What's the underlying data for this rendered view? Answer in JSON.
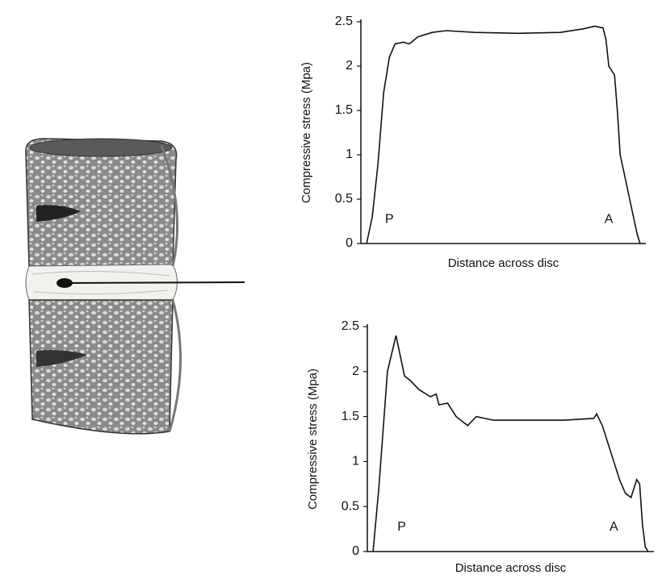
{
  "chart_data": [
    {
      "type": "line",
      "xlabel": "Distance across disc",
      "ylabel": "Compressive stress (Mpa)",
      "annotations": [
        "P",
        "A"
      ],
      "x": [
        2,
        4,
        6,
        8,
        10,
        12,
        15,
        17,
        20,
        25,
        30,
        40,
        55,
        70,
        78,
        82,
        85,
        86,
        87,
        89,
        90,
        91,
        93,
        95,
        97,
        98
      ],
      "values": [
        0,
        0.3,
        0.9,
        1.7,
        2.1,
        2.25,
        2.27,
        2.25,
        2.33,
        2.38,
        2.4,
        2.38,
        2.37,
        2.38,
        2.42,
        2.45,
        2.43,
        2.3,
        2.0,
        1.9,
        1.5,
        1.0,
        0.7,
        0.4,
        0.1,
        0
      ],
      "color": "#111111",
      "xlim": [
        0,
        100
      ],
      "ylim": [
        0,
        2.5
      ],
      "yticks": [
        0,
        0.5,
        1,
        1.5,
        2,
        2.5
      ]
    },
    {
      "type": "line",
      "xlabel": "Distance across disc",
      "ylabel": "Compressive stress (Mpa)",
      "annotations": [
        "P",
        "A"
      ],
      "x": [
        2,
        4,
        7,
        10,
        13,
        15,
        18,
        22,
        24,
        25,
        28,
        31,
        35,
        38,
        44,
        69,
        79,
        80,
        82,
        84,
        88,
        90,
        92,
        94,
        95,
        96,
        97,
        98
      ],
      "values": [
        0,
        0.7,
        2.0,
        2.4,
        1.95,
        1.9,
        1.8,
        1.72,
        1.75,
        1.63,
        1.65,
        1.5,
        1.4,
        1.5,
        1.46,
        1.46,
        1.48,
        1.53,
        1.4,
        1.2,
        0.8,
        0.65,
        0.6,
        0.8,
        0.75,
        0.3,
        0.05,
        0
      ],
      "color": "#111111",
      "xlim": [
        0,
        100
      ],
      "ylim": [
        0,
        2.5
      ],
      "yticks": [
        0,
        0.5,
        1,
        1.5,
        2,
        2.5
      ]
    }
  ]
}
